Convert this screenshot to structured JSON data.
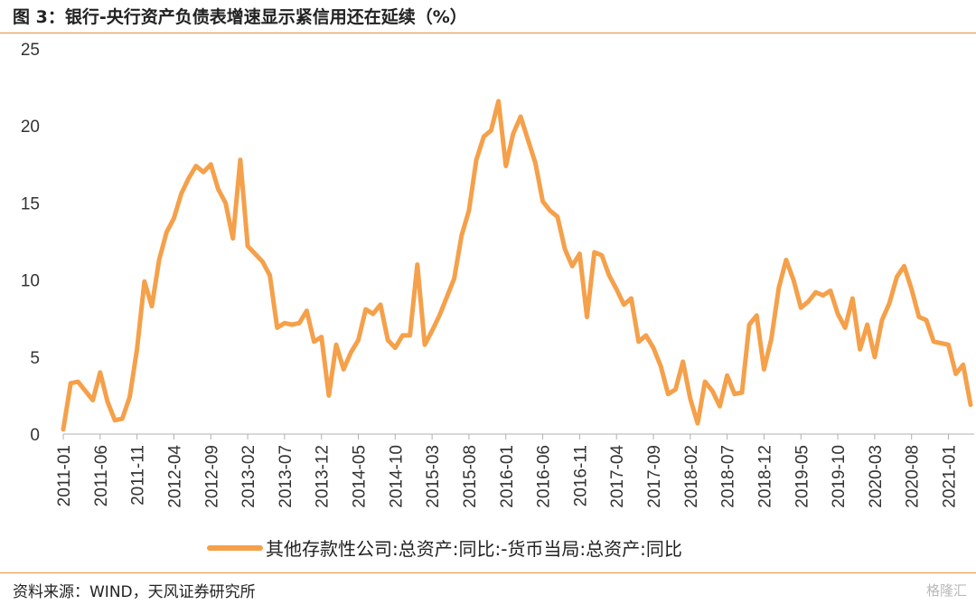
{
  "header": {
    "title": "图 3：银行-央行资产负债表增速显示紧信用还在延续（%）"
  },
  "footer": {
    "source": "资料来源：WIND，天风证券研究所",
    "watermark": "格隆汇"
  },
  "colors": {
    "accent": "#e8903a",
    "series": "#f5a04a"
  },
  "chart_data": {
    "type": "line",
    "title": "图 3：银行-央行资产负债表增速显示紧信用还在延续（%）",
    "xlabel": "",
    "ylabel": "",
    "ylim": [
      0,
      25
    ],
    "yticks": [
      0,
      5,
      10,
      15,
      20,
      25
    ],
    "x_start": "2011-01",
    "xticks": [
      "2011-01",
      "2011-06",
      "2011-11",
      "2012-04",
      "2012-09",
      "2013-02",
      "2013-07",
      "2013-12",
      "2014-05",
      "2014-10",
      "2015-03",
      "2015-08",
      "2016-01",
      "2016-06",
      "2016-11",
      "2017-04",
      "2017-09",
      "2018-02",
      "2018-07",
      "2018-12",
      "2019-05",
      "2019-10",
      "2020-03",
      "2020-08",
      "2021-01"
    ],
    "grid": false,
    "legend_position": "bottom",
    "series": [
      {
        "name": "其他存款性公司:总资产:同比:-货币当局:总资产:同比",
        "values": [
          0.3,
          3.3,
          3.4,
          2.8,
          2.2,
          4.0,
          2.1,
          0.9,
          1.0,
          2.4,
          5.5,
          9.9,
          8.3,
          11.3,
          13.1,
          14.0,
          15.6,
          16.6,
          17.4,
          17.0,
          17.5,
          15.9,
          15.0,
          12.7,
          17.8,
          12.2,
          11.7,
          11.2,
          10.3,
          6.9,
          7.2,
          7.1,
          7.2,
          8.0,
          6.0,
          6.3,
          2.5,
          5.8,
          4.2,
          5.3,
          6.1,
          8.1,
          7.8,
          8.4,
          6.1,
          5.6,
          6.4,
          6.4,
          11.0,
          5.8,
          6.7,
          7.7,
          8.9,
          10.1,
          12.9,
          14.5,
          17.8,
          19.3,
          19.7,
          21.6,
          17.4,
          19.5,
          20.6,
          19.1,
          17.6,
          15.1,
          14.5,
          14.1,
          12.0,
          10.9,
          11.7,
          7.6,
          11.8,
          11.6,
          10.3,
          9.4,
          8.4,
          8.8,
          6.0,
          6.4,
          5.6,
          4.4,
          2.6,
          2.9,
          4.7,
          2.3,
          0.7,
          3.4,
          2.8,
          1.8,
          3.8,
          2.6,
          2.7,
          7.1,
          7.7,
          4.2,
          6.2,
          9.5,
          11.3,
          10.0,
          8.2,
          8.6,
          9.2,
          9.0,
          9.3,
          7.8,
          6.9,
          8.8,
          5.5,
          7.1,
          5.0,
          7.4,
          8.5,
          10.2,
          10.9,
          9.4,
          7.6,
          7.4,
          6.0,
          5.9,
          5.8,
          3.9,
          4.5,
          1.9
        ]
      }
    ]
  }
}
